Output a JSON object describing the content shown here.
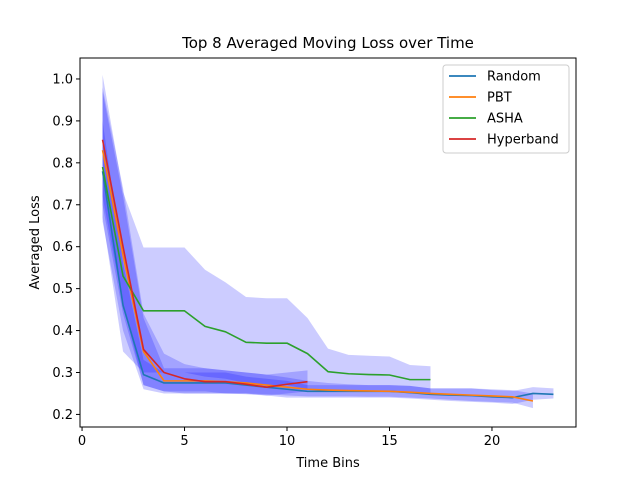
{
  "chart_data": {
    "type": "line",
    "title": "Top 8 Averaged Moving Loss over Time",
    "xlabel": "Time Bins",
    "ylabel": "Averaged Loss",
    "xlim": [
      -0.1,
      24.1
    ],
    "ylim": [
      0.17,
      1.05
    ],
    "xticks": [
      0,
      5,
      10,
      15,
      20
    ],
    "yticks": [
      0.2,
      0.3,
      0.4,
      0.5,
      0.6,
      0.7,
      0.8,
      0.9,
      1.0
    ],
    "grid": false,
    "legend_position": "top-right",
    "band_color": "#0000ff",
    "series": [
      {
        "name": "Random",
        "color": "#1f77b4",
        "x": [
          1,
          2,
          3,
          4,
          5,
          6,
          7,
          8,
          9,
          10,
          11,
          12,
          13,
          14,
          15,
          16,
          17,
          18,
          19,
          20,
          21,
          22,
          23
        ],
        "values": [
          0.78,
          0.46,
          0.295,
          0.275,
          0.275,
          0.275,
          0.275,
          0.27,
          0.265,
          0.26,
          0.255,
          0.255,
          0.255,
          0.255,
          0.255,
          0.252,
          0.248,
          0.246,
          0.245,
          0.242,
          0.24,
          0.25,
          0.248
        ],
        "lower": [
          0.66,
          0.4,
          0.26,
          0.25,
          0.25,
          0.25,
          0.25,
          0.25,
          0.245,
          0.24,
          0.24,
          0.24,
          0.24,
          0.24,
          0.24,
          0.238,
          0.235,
          0.232,
          0.23,
          0.228,
          0.225,
          0.235,
          0.238
        ],
        "upper": [
          0.9,
          0.56,
          0.33,
          0.3,
          0.3,
          0.3,
          0.3,
          0.29,
          0.285,
          0.28,
          0.27,
          0.27,
          0.27,
          0.27,
          0.27,
          0.268,
          0.262,
          0.262,
          0.262,
          0.258,
          0.256,
          0.265,
          0.262
        ]
      },
      {
        "name": "PBT",
        "color": "#ff7f0e",
        "x": [
          1,
          2,
          3,
          4,
          5,
          6,
          7,
          8,
          9,
          10,
          11,
          12,
          13,
          14,
          15,
          16,
          17,
          18,
          19,
          20,
          21,
          22
        ],
        "values": [
          0.83,
          0.58,
          0.35,
          0.28,
          0.28,
          0.28,
          0.278,
          0.275,
          0.27,
          0.265,
          0.26,
          0.258,
          0.257,
          0.256,
          0.255,
          0.253,
          0.25,
          0.248,
          0.246,
          0.244,
          0.242,
          0.232
        ],
        "lower": [
          0.7,
          0.44,
          0.27,
          0.255,
          0.255,
          0.255,
          0.25,
          0.25,
          0.248,
          0.245,
          0.243,
          0.243,
          0.243,
          0.242,
          0.242,
          0.24,
          0.238,
          0.235,
          0.232,
          0.23,
          0.228,
          0.215
        ],
        "upper": [
          0.97,
          0.72,
          0.43,
          0.31,
          0.31,
          0.31,
          0.305,
          0.3,
          0.295,
          0.288,
          0.28,
          0.275,
          0.272,
          0.27,
          0.27,
          0.268,
          0.262,
          0.262,
          0.262,
          0.26,
          0.258,
          0.25
        ]
      },
      {
        "name": "ASHA",
        "color": "#2ca02c",
        "x": [
          1,
          2,
          3,
          4,
          5,
          6,
          7,
          8,
          9,
          10,
          11,
          12,
          13,
          14,
          15,
          16,
          17
        ],
        "values": [
          0.79,
          0.53,
          0.447,
          0.447,
          0.447,
          0.41,
          0.397,
          0.372,
          0.37,
          0.37,
          0.345,
          0.302,
          0.297,
          0.295,
          0.294,
          0.283,
          0.283
        ],
        "lower": [
          0.67,
          0.35,
          0.3,
          0.3,
          0.3,
          0.29,
          0.285,
          0.275,
          0.27,
          0.27,
          0.26,
          0.255,
          0.255,
          0.255,
          0.255,
          0.25,
          0.25
        ],
        "upper": [
          1.01,
          0.73,
          0.598,
          0.598,
          0.598,
          0.545,
          0.515,
          0.48,
          0.477,
          0.477,
          0.43,
          0.357,
          0.342,
          0.34,
          0.338,
          0.318,
          0.315
        ]
      },
      {
        "name": "Hyperband",
        "color": "#d62728",
        "x": [
          1,
          2,
          3,
          4,
          5,
          6,
          7,
          8,
          9,
          10,
          11
        ],
        "values": [
          0.855,
          0.6,
          0.355,
          0.3,
          0.285,
          0.278,
          0.278,
          0.272,
          0.265,
          0.272,
          0.278
        ],
        "lower": [
          0.72,
          0.46,
          0.27,
          0.255,
          0.25,
          0.25,
          0.25,
          0.248,
          0.245,
          0.25,
          0.255
        ],
        "upper": [
          0.98,
          0.74,
          0.44,
          0.345,
          0.32,
          0.31,
          0.305,
          0.3,
          0.295,
          0.3,
          0.305
        ]
      }
    ]
  }
}
